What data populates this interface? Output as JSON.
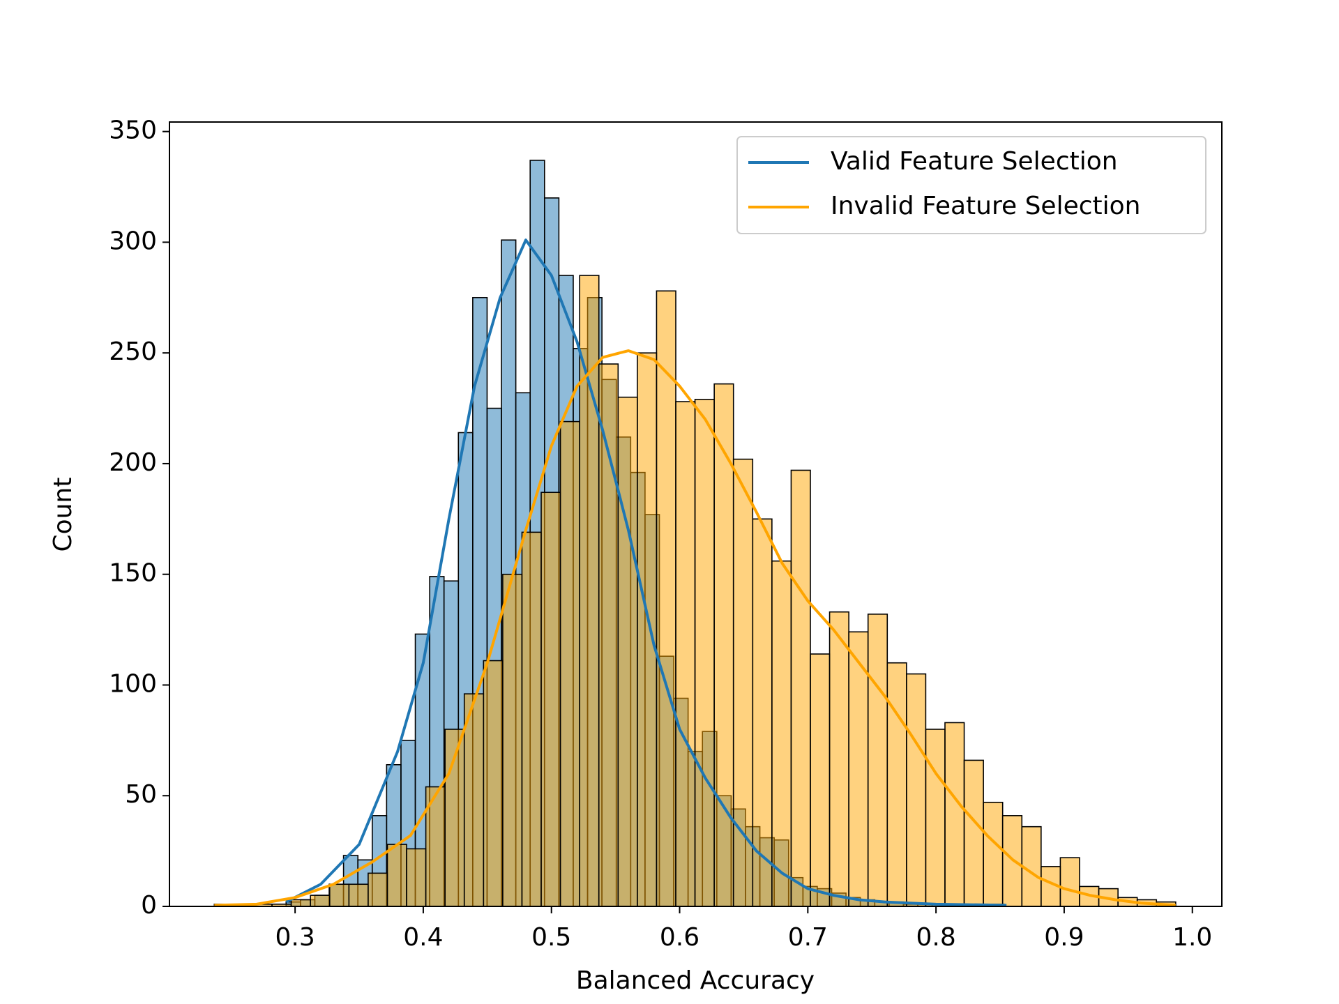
{
  "chart_data": {
    "type": "histogram",
    "xlabel": "Balanced Accuracy",
    "ylabel": "Count",
    "xlim": [
      0.202,
      1.023
    ],
    "ylim": [
      0,
      354.3
    ],
    "xticks": [
      0.3,
      0.4,
      0.5,
      0.6,
      0.7,
      0.8,
      0.9,
      {
        "value": 1,
        "label": "1.0"
      }
    ],
    "yticks": [
      0,
      50,
      100,
      150,
      200,
      250,
      300,
      350
    ],
    "legend_loc": "upper right",
    "series": [
      {
        "name": "Valid Feature Selection",
        "color": "#1f77b4",
        "bins": [
          0.293,
          0.3042,
          0.3154,
          0.3266,
          0.3378,
          0.349,
          0.3602,
          0.3714,
          0.3826,
          0.3938,
          0.405,
          0.4162,
          0.4274,
          0.4386,
          0.4498,
          0.461,
          0.4722,
          0.4834,
          0.4946,
          0.5058,
          0.517,
          0.5282,
          0.5394,
          0.5506,
          0.5618,
          0.573,
          0.5842,
          0.5954,
          0.6066,
          0.6178,
          0.629,
          0.6402,
          0.6514,
          0.6626,
          0.6738,
          0.685,
          0.6962,
          0.7074,
          0.7186,
          0.7298,
          0.741,
          0.7522,
          0.7634,
          0.7746,
          0.7858,
          0.797,
          0.8082,
          0.8194,
          0.8306,
          0.8418,
          0.853
        ],
        "values": [
          2,
          3,
          5,
          10,
          23,
          21,
          41,
          64,
          75,
          123,
          149,
          147,
          214,
          275,
          225,
          301,
          232,
          337,
          320,
          285,
          252,
          275,
          238,
          212,
          196,
          177,
          113,
          94,
          70,
          79,
          50,
          44,
          36,
          31,
          30,
          13,
          9,
          8,
          6,
          4,
          3,
          2,
          2,
          1,
          1,
          1,
          0,
          1,
          0,
          1
        ],
        "kde": {
          "x": [
            0.293,
            0.32,
            0.35,
            0.38,
            0.4,
            0.42,
            0.44,
            0.46,
            0.48,
            0.5,
            0.52,
            0.54,
            0.56,
            0.58,
            0.6,
            0.62,
            0.64,
            0.66,
            0.68,
            0.7,
            0.72,
            0.74,
            0.76,
            0.8,
            0.855
          ],
          "y": [
            2,
            10,
            28,
            70,
            110,
            175,
            235,
            275,
            301,
            285,
            255,
            215,
            170,
            118,
            80,
            58,
            40,
            25,
            15,
            8,
            5,
            3,
            2,
            1,
            0.5
          ]
        }
      },
      {
        "name": "Invalid Feature Selection",
        "color": "#ffa500",
        "bins": [
          0.237,
          0.252,
          0.267,
          0.282,
          0.297,
          0.312,
          0.327,
          0.342,
          0.357,
          0.372,
          0.387,
          0.402,
          0.417,
          0.432,
          0.447,
          0.462,
          0.477,
          0.492,
          0.507,
          0.522,
          0.537,
          0.552,
          0.567,
          0.582,
          0.597,
          0.612,
          0.627,
          0.642,
          0.657,
          0.672,
          0.687,
          0.702,
          0.717,
          0.732,
          0.747,
          0.762,
          0.777,
          0.792,
          0.807,
          0.822,
          0.837,
          0.852,
          0.867,
          0.882,
          0.897,
          0.912,
          0.927,
          0.942,
          0.957,
          0.972,
          0.987
        ],
        "values": [
          1,
          0,
          1,
          1,
          3,
          5,
          10,
          10,
          15,
          28,
          26,
          54,
          80,
          96,
          111,
          150,
          169,
          187,
          219,
          285,
          245,
          230,
          250,
          278,
          228,
          229,
          236,
          202,
          175,
          156,
          197,
          114,
          133,
          124,
          132,
          110,
          105,
          80,
          83,
          66,
          47,
          41,
          36,
          18,
          22,
          9,
          8,
          4,
          3,
          2
        ],
        "kde": {
          "x": [
            0.237,
            0.27,
            0.3,
            0.33,
            0.36,
            0.39,
            0.42,
            0.45,
            0.48,
            0.5,
            0.52,
            0.54,
            0.56,
            0.58,
            0.6,
            0.62,
            0.64,
            0.66,
            0.68,
            0.7,
            0.72,
            0.74,
            0.76,
            0.78,
            0.8,
            0.82,
            0.84,
            0.86,
            0.88,
            0.9,
            0.92,
            0.94,
            0.96,
            0.987
          ],
          "y": [
            0.5,
            1,
            4,
            10,
            20,
            32,
            60,
            110,
            170,
            208,
            235,
            248,
            251,
            247,
            235,
            220,
            200,
            178,
            155,
            138,
            125,
            110,
            95,
            78,
            60,
            45,
            32,
            21,
            13,
            8,
            5,
            3,
            1.5,
            0.5
          ]
        }
      }
    ]
  }
}
